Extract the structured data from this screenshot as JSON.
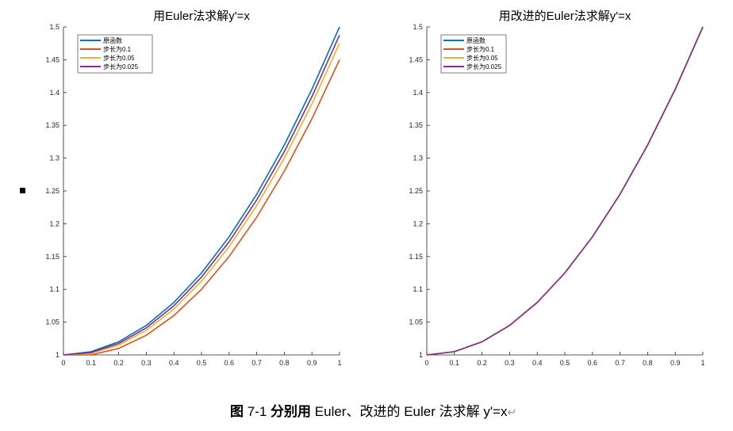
{
  "caption": {
    "label": "图",
    "number": "7-1",
    "bold_text": "分别用",
    "text": "Euler、改进的 Euler 法求解 y'=x",
    "return_mark": "↵"
  },
  "chart_data": [
    {
      "type": "line",
      "title": "用Euler法求解y'=x",
      "xlim": [
        0,
        1
      ],
      "ylim": [
        1,
        1.5
      ],
      "xticks": [
        "0",
        "0.1",
        "0.2",
        "0.3",
        "0.4",
        "0.5",
        "0.6",
        "0.7",
        "0.8",
        "0.9",
        "1"
      ],
      "yticks": [
        "1",
        "1.05",
        "1.1",
        "1.15",
        "1.2",
        "1.25",
        "1.3",
        "1.35",
        "1.4",
        "1.45",
        "1.5"
      ],
      "legend_position": "top-left",
      "series": [
        {
          "name": "原函数",
          "color": "#0072BD",
          "x": [
            0,
            0.1,
            0.2,
            0.3,
            0.4,
            0.5,
            0.6,
            0.7,
            0.8,
            0.9,
            1
          ],
          "y": [
            1,
            1.005,
            1.02,
            1.045,
            1.08,
            1.125,
            1.18,
            1.245,
            1.32,
            1.405,
            1.5
          ]
        },
        {
          "name": "步长为0.1",
          "color": "#D95319",
          "x": [
            0,
            0.1,
            0.2,
            0.3,
            0.4,
            0.5,
            0.6,
            0.7,
            0.8,
            0.9,
            1
          ],
          "y": [
            1,
            1,
            1.01,
            1.03,
            1.06,
            1.1,
            1.15,
            1.21,
            1.28,
            1.36,
            1.45
          ]
        },
        {
          "name": "步长为0.05",
          "color": "#EDB120",
          "x": [
            0,
            0.1,
            0.2,
            0.3,
            0.4,
            0.5,
            0.6,
            0.7,
            0.8,
            0.9,
            1
          ],
          "y": [
            1,
            1.0025,
            1.015,
            1.0375,
            1.07,
            1.1125,
            1.165,
            1.2275,
            1.3,
            1.3825,
            1.475
          ]
        },
        {
          "name": "步长为0.025",
          "color": "#7E2F8E",
          "x": [
            0,
            0.1,
            0.2,
            0.3,
            0.4,
            0.5,
            0.6,
            0.7,
            0.8,
            0.9,
            1
          ],
          "y": [
            1,
            1.00375,
            1.0175,
            1.04125,
            1.075,
            1.11875,
            1.1725,
            1.23625,
            1.31,
            1.39375,
            1.4875
          ]
        }
      ]
    },
    {
      "type": "line",
      "title": "用改进的Euler法求解y'=x",
      "xlim": [
        0,
        1
      ],
      "ylim": [
        1,
        1.5
      ],
      "xticks": [
        "0",
        "0.1",
        "0.2",
        "0.3",
        "0.4",
        "0.5",
        "0.6",
        "0.7",
        "0.8",
        "0.9",
        "1"
      ],
      "yticks": [
        "1",
        "1.05",
        "1.1",
        "1.15",
        "1.2",
        "1.25",
        "1.3",
        "1.35",
        "1.4",
        "1.45",
        "1.5"
      ],
      "legend_position": "top-left",
      "series": [
        {
          "name": "原函数",
          "color": "#0072BD",
          "x": [
            0,
            0.1,
            0.2,
            0.3,
            0.4,
            0.5,
            0.6,
            0.7,
            0.8,
            0.9,
            1
          ],
          "y": [
            1,
            1.005,
            1.02,
            1.045,
            1.08,
            1.125,
            1.18,
            1.245,
            1.32,
            1.405,
            1.5
          ]
        },
        {
          "name": "步长为0.1",
          "color": "#D95319",
          "x": [
            0,
            0.1,
            0.2,
            0.3,
            0.4,
            0.5,
            0.6,
            0.7,
            0.8,
            0.9,
            1
          ],
          "y": [
            1,
            1.005,
            1.02,
            1.045,
            1.08,
            1.125,
            1.18,
            1.245,
            1.32,
            1.405,
            1.5
          ]
        },
        {
          "name": "步长为0.05",
          "color": "#EDB120",
          "x": [
            0,
            0.1,
            0.2,
            0.3,
            0.4,
            0.5,
            0.6,
            0.7,
            0.8,
            0.9,
            1
          ],
          "y": [
            1,
            1.005,
            1.02,
            1.045,
            1.08,
            1.125,
            1.18,
            1.245,
            1.32,
            1.405,
            1.5
          ]
        },
        {
          "name": "步长为0.025",
          "color": "#7E2F8E",
          "x": [
            0,
            0.1,
            0.2,
            0.3,
            0.4,
            0.5,
            0.6,
            0.7,
            0.8,
            0.9,
            1
          ],
          "y": [
            1,
            1.005,
            1.02,
            1.045,
            1.08,
            1.125,
            1.18,
            1.245,
            1.32,
            1.405,
            1.5
          ]
        }
      ]
    }
  ]
}
